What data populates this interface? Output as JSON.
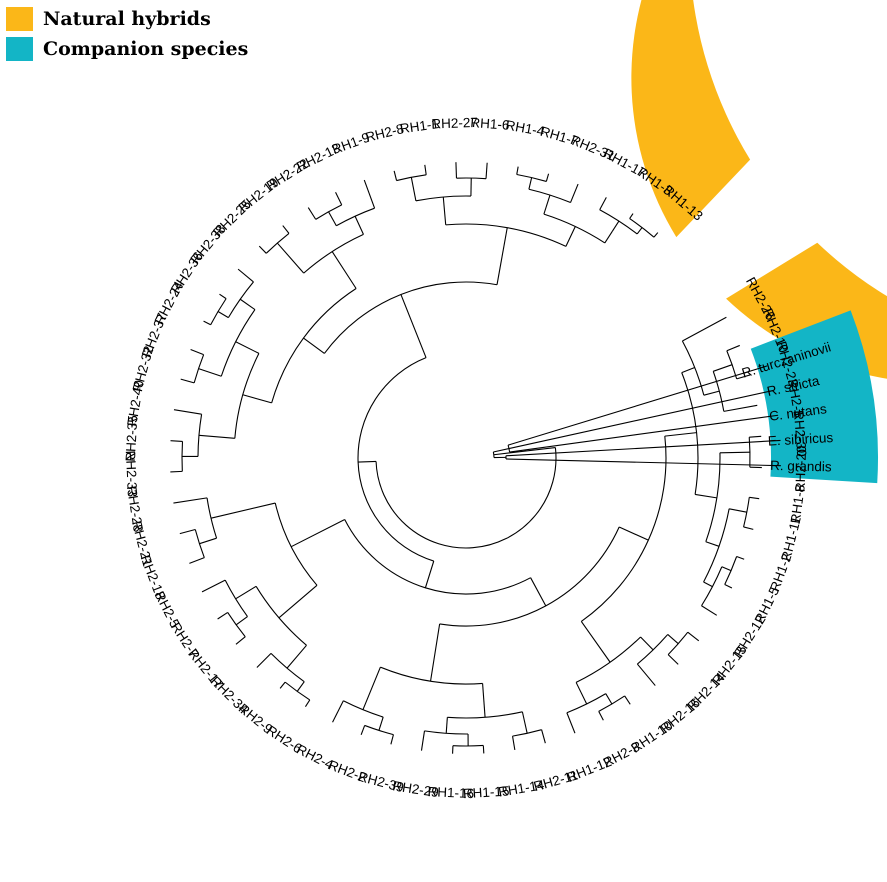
{
  "legend": {
    "items": [
      {
        "label": "Natural hybrids",
        "color": "#FBB718"
      },
      {
        "label": "Companion species",
        "color": "#13B5C6"
      }
    ]
  },
  "tree": {
    "layout": "circular",
    "hybrid_tips": [
      "RH2-26",
      "RH2-10",
      "RH2-23",
      "RH2-1",
      "RH2-30",
      "RH2-20",
      "RH1-8",
      "RH1-11",
      "RH1-2",
      "RH1-5",
      "RH2-12",
      "RH2-15",
      "RH2-14",
      "RH2-16",
      "RH1-10",
      "RH2-3",
      "RH1-12",
      "RH2-11",
      "RH1-14",
      "RH1-15",
      "RH1-16",
      "RH2-29",
      "RH2-39",
      "RH2-2",
      "RH2-4",
      "RH2-6",
      "RH2-9",
      "RH2-34",
      "RH2-17",
      "RH2-7",
      "RH2-5",
      "RH2-18",
      "RH2-21",
      "RH2-28",
      "RH2-33",
      "RH2-35",
      "RH2-40",
      "RH2-32",
      "RH2-37",
      "RH2-24",
      "RH2-36",
      "RH2-38",
      "RH2-25",
      "RH2-19",
      "RH2-22",
      "RH2-13",
      "RH1-9",
      "RH2-8",
      "RH1-1",
      "RH2-27",
      "RH1-6",
      "RH1-4",
      "RH1-7",
      "RH2-31",
      "RH1-17",
      "RH1-3",
      "RH1-13"
    ],
    "companion_tips": [
      "R. turczaninovii",
      "R. stricta",
      "C. nutans",
      "E. sibiricus",
      "R. grandis"
    ]
  }
}
